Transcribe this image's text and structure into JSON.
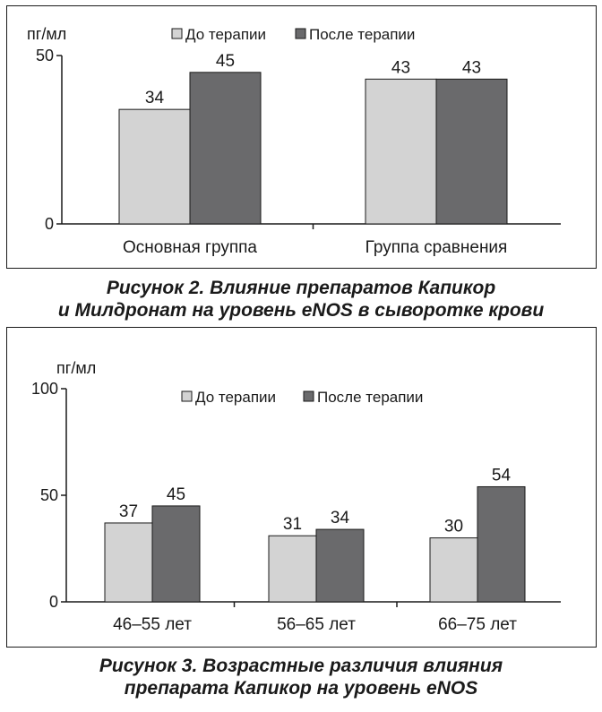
{
  "colors": {
    "before": "#d3d3d3",
    "after": "#6a6a6c",
    "axis": "#1a1a1a"
  },
  "chart_data": [
    {
      "type": "bar",
      "ylabel": "пг/мл",
      "ylim": [
        0,
        50
      ],
      "yticks": [
        0,
        50
      ],
      "legend_position": "top-right",
      "categories": [
        "Основная группа",
        "Группа сравнения"
      ],
      "series": [
        {
          "name": "До терапии",
          "values": [
            34,
            43
          ]
        },
        {
          "name": "После терапии",
          "values": [
            45,
            43
          ]
        }
      ],
      "caption_lines": [
        "Рисунок 2. Влияние препаратов Капикор",
        "и Милдронат на уровень eNOS в сыворотке крови"
      ]
    },
    {
      "type": "bar",
      "ylabel": "пг/мл",
      "ylim": [
        0,
        100
      ],
      "yticks": [
        0,
        50,
        100
      ],
      "legend_position": "top-center",
      "categories": [
        "46–55 лет",
        "56–65 лет",
        "66–75 лет"
      ],
      "series": [
        {
          "name": "До терапии",
          "values": [
            37,
            31,
            30
          ]
        },
        {
          "name": "После терапии",
          "values": [
            45,
            34,
            54
          ]
        }
      ],
      "caption_lines": [
        "Рисунок 3. Возрастные различия влияния",
        "препарата Капикор на уровень eNOS"
      ]
    }
  ]
}
